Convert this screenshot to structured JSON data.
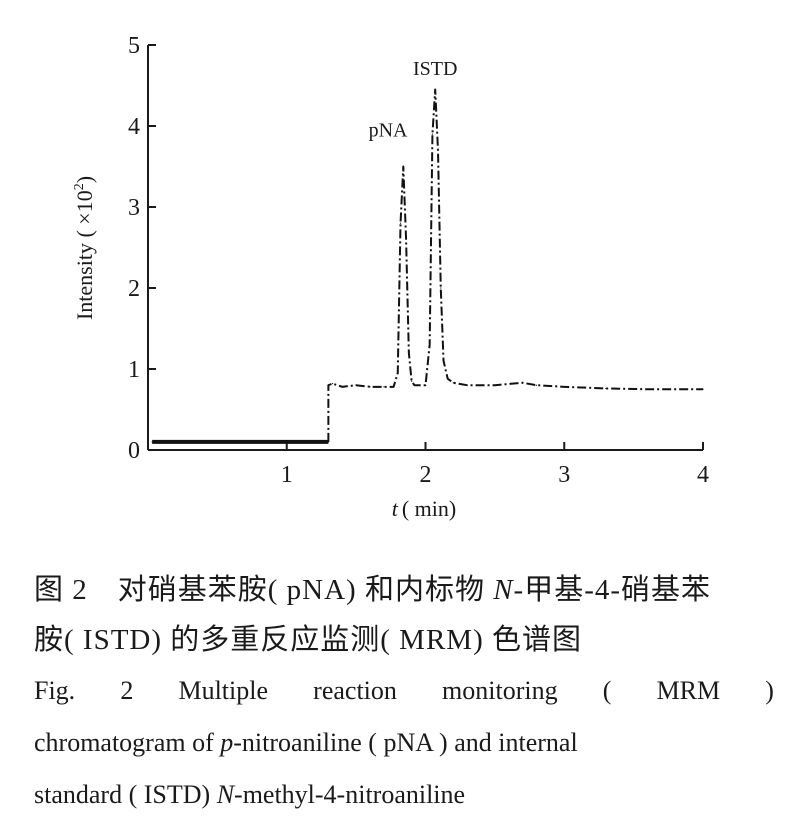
{
  "chart_data": {
    "type": "line",
    "x_label_var": "t",
    "x_label_unit": "( min)",
    "y_label": "Intensity ( ×10",
    "y_label_exp": "2",
    "y_label_close": ")",
    "xlim": [
      0,
      4
    ],
    "ylim": [
      0,
      5
    ],
    "x_ticks": [
      "1",
      "2",
      "3",
      "4"
    ],
    "y_ticks": [
      "0",
      "1",
      "2",
      "3",
      "4",
      "5"
    ],
    "grid": false,
    "series": [
      {
        "x": [
          0.03,
          1.3,
          1.3,
          1.33,
          1.4,
          1.5,
          1.6,
          1.7,
          1.77,
          1.8,
          1.82,
          1.84,
          1.86,
          1.88,
          1.9,
          1.92,
          1.96,
          2.0,
          2.03,
          2.05,
          2.07,
          2.09,
          2.11,
          2.13,
          2.16,
          2.2,
          2.3,
          2.5,
          2.7,
          2.8,
          3.0,
          3.3,
          3.6,
          3.8,
          4.0
        ],
        "y": [
          0.1,
          0.1,
          0.8,
          0.82,
          0.78,
          0.8,
          0.78,
          0.78,
          0.78,
          0.95,
          2.8,
          3.5,
          2.6,
          1.2,
          0.85,
          0.8,
          0.8,
          0.8,
          1.3,
          3.9,
          4.45,
          3.7,
          2.0,
          1.1,
          0.88,
          0.83,
          0.8,
          0.8,
          0.83,
          0.8,
          0.78,
          0.76,
          0.75,
          0.75,
          0.75
        ]
      }
    ],
    "annotations": [
      {
        "text": "pNA",
        "x": 1.73,
        "y": 3.87
      },
      {
        "text": "ISTD",
        "x": 2.07,
        "y": 4.63
      }
    ]
  },
  "caption": {
    "cn_line1_prefix": "图 2　对硝基苯胺( pNA) 和内标物 ",
    "cn_line1_italic": "N",
    "cn_line1_suffix": "-甲基-4-硝基苯",
    "cn_line2": "胺( ISTD) 的多重反应监测( MRM) 色谱图",
    "en_line1_words": [
      "Fig.",
      "2",
      "Multiple",
      "reaction",
      "monitoring",
      "(",
      "MRM",
      ")"
    ],
    "en_line2_a": "chromatogram of ",
    "en_line2_italic": "p",
    "en_line2_b": "-nitroaniline ( pNA ) and internal",
    "en_line3_a": "standard ( ISTD) ",
    "en_line3_italic": "N",
    "en_line3_b": "-methyl-4-nitroaniline"
  }
}
